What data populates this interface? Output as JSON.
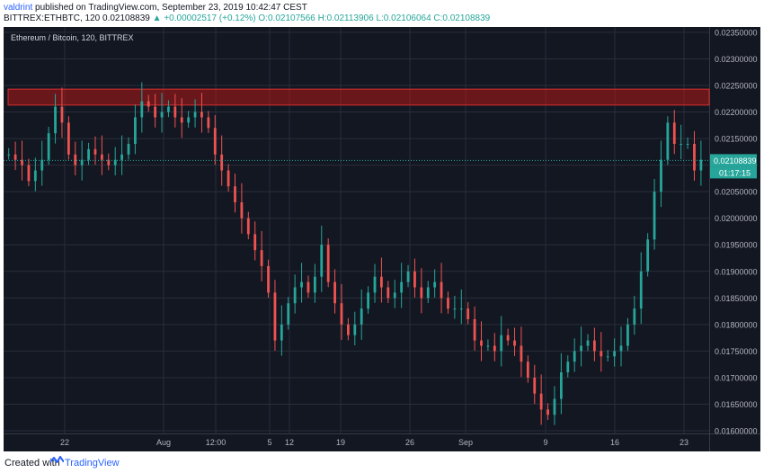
{
  "header": {
    "username": "valdrint",
    "published_text": "published on TradingView.com, September 23, 2019 10:42:47 CEST",
    "symbol": "BITTREX:ETHBTC, 120",
    "last": "0.02108839",
    "change": "▲ +0.00002517 (+0.12%)",
    "ohlc": "O:0.02107566 H:0.02113906 L:0.02106064 C:0.02108839"
  },
  "footer": {
    "created_with": "Created with",
    "brand": "TradingView"
  },
  "chart_data": {
    "type": "candlestick",
    "title": "Ethereum / Bitcoin, 120, BITTREX",
    "current_price_label": "0.02108839",
    "countdown_label": "01:17:15",
    "ylim": [
      0.01595,
      0.0236
    ],
    "y_ticks": [
      "0.02350000",
      "0.02300000",
      "0.02250000",
      "0.02200000",
      "0.02150000",
      "0.02100000",
      "0.02050000",
      "0.02000000",
      "0.01950000",
      "0.01900000",
      "0.01850000",
      "0.01800000",
      "0.01750000",
      "0.01700000",
      "0.01650000",
      "0.01600000"
    ],
    "x_ticks": [
      "22",
      "Aug",
      "12:00",
      "5",
      "12",
      "19",
      "26",
      "Sep",
      "9",
      "16",
      "23"
    ],
    "resistance_zone": [
      0.02213,
      0.02243
    ],
    "close_path": [
      [
        0,
        0.0212
      ],
      [
        2,
        0.0211
      ],
      [
        4,
        0.021
      ],
      [
        6,
        0.0207
      ],
      [
        8,
        0.0209
      ],
      [
        10,
        0.0211
      ],
      [
        12,
        0.0216
      ],
      [
        14,
        0.0221
      ],
      [
        16,
        0.0218
      ],
      [
        18,
        0.0212
      ],
      [
        20,
        0.021
      ],
      [
        22,
        0.0211
      ],
      [
        24,
        0.0213
      ],
      [
        26,
        0.0212
      ],
      [
        28,
        0.0211
      ],
      [
        30,
        0.021
      ],
      [
        32,
        0.0211
      ],
      [
        34,
        0.0212
      ],
      [
        36,
        0.0214
      ],
      [
        38,
        0.0219
      ],
      [
        40,
        0.0222
      ],
      [
        42,
        0.0221
      ],
      [
        44,
        0.0219
      ],
      [
        46,
        0.022
      ],
      [
        48,
        0.0221
      ],
      [
        50,
        0.0219
      ],
      [
        52,
        0.0218
      ],
      [
        54,
        0.0219
      ],
      [
        56,
        0.022
      ],
      [
        58,
        0.0219
      ],
      [
        60,
        0.0217
      ],
      [
        62,
        0.0212
      ],
      [
        64,
        0.0209
      ],
      [
        66,
        0.0206
      ],
      [
        68,
        0.0203
      ],
      [
        70,
        0.02
      ],
      [
        72,
        0.0197
      ],
      [
        74,
        0.0194
      ],
      [
        76,
        0.0191
      ],
      [
        78,
        0.0186
      ],
      [
        80,
        0.0177
      ],
      [
        82,
        0.018
      ],
      [
        84,
        0.0184
      ],
      [
        86,
        0.0187
      ],
      [
        88,
        0.0188
      ],
      [
        90,
        0.0186
      ],
      [
        92,
        0.0189
      ],
      [
        94,
        0.0195
      ],
      [
        96,
        0.0188
      ],
      [
        98,
        0.0184
      ],
      [
        100,
        0.018
      ],
      [
        102,
        0.0178
      ],
      [
        104,
        0.018
      ],
      [
        106,
        0.0183
      ],
      [
        108,
        0.0186
      ],
      [
        110,
        0.0189
      ],
      [
        112,
        0.0187
      ],
      [
        114,
        0.0185
      ],
      [
        116,
        0.0186
      ],
      [
        118,
        0.0188
      ],
      [
        120,
        0.019
      ],
      [
        122,
        0.0187
      ],
      [
        124,
        0.0185
      ],
      [
        126,
        0.0187
      ],
      [
        128,
        0.0188
      ],
      [
        130,
        0.0185
      ],
      [
        132,
        0.0183
      ],
      [
        134,
        0.0183
      ],
      [
        136,
        0.0183
      ],
      [
        138,
        0.0181
      ],
      [
        140,
        0.0177
      ],
      [
        142,
        0.0176
      ],
      [
        144,
        0.0176
      ],
      [
        146,
        0.0175
      ],
      [
        148,
        0.0178
      ],
      [
        150,
        0.0177
      ],
      [
        152,
        0.0176
      ],
      [
        154,
        0.0173
      ],
      [
        156,
        0.017
      ],
      [
        158,
        0.0167
      ],
      [
        160,
        0.0164
      ],
      [
        162,
        0.0163
      ],
      [
        164,
        0.0166
      ],
      [
        166,
        0.0171
      ],
      [
        168,
        0.0173
      ],
      [
        170,
        0.0175
      ],
      [
        172,
        0.0176
      ],
      [
        174,
        0.0177
      ],
      [
        176,
        0.0175
      ],
      [
        178,
        0.0174
      ],
      [
        180,
        0.0174
      ],
      [
        182,
        0.0175
      ],
      [
        184,
        0.0176
      ],
      [
        186,
        0.018
      ],
      [
        188,
        0.0183
      ],
      [
        190,
        0.019
      ],
      [
        192,
        0.0196
      ],
      [
        194,
        0.0205
      ],
      [
        196,
        0.0211
      ],
      [
        198,
        0.0218
      ],
      [
        200,
        0.0214
      ],
      [
        202,
        0.0214
      ],
      [
        204,
        0.0214
      ],
      [
        206,
        0.0209
      ],
      [
        208,
        0.0211
      ]
    ]
  }
}
